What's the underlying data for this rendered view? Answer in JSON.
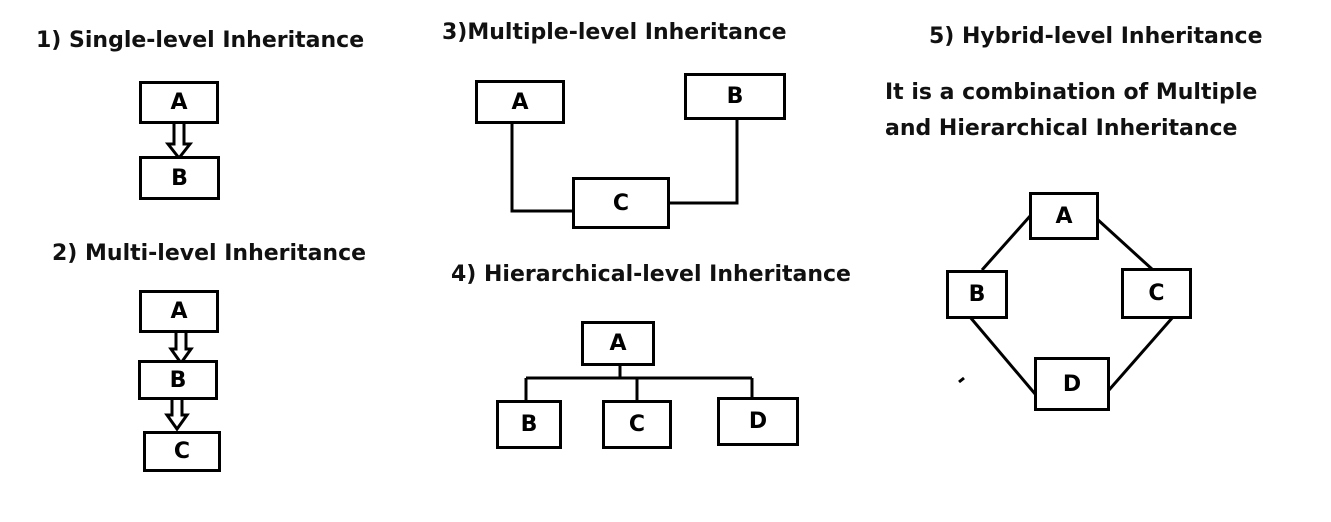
{
  "diagrams": {
    "single": {
      "title": "1) Single-level Inheritance",
      "nodes": [
        "A",
        "B"
      ]
    },
    "multi": {
      "title": "2) Multi-level Inheritance",
      "nodes": [
        "A",
        "B",
        "C"
      ]
    },
    "multiple": {
      "title": "3)Multiple-level Inheritance",
      "nodes": [
        "A",
        "B",
        "C"
      ]
    },
    "hierarchical": {
      "title": "4) Hierarchical-level Inheritance",
      "nodes": [
        "A",
        "B",
        "C",
        "D"
      ]
    },
    "hybrid": {
      "title": "5) Hybrid-level Inheritance",
      "description_line1": "It is a combination of Multiple",
      "description_line2": "and Hierarchical Inheritance",
      "nodes": [
        "A",
        "B",
        "C",
        "D"
      ]
    }
  }
}
